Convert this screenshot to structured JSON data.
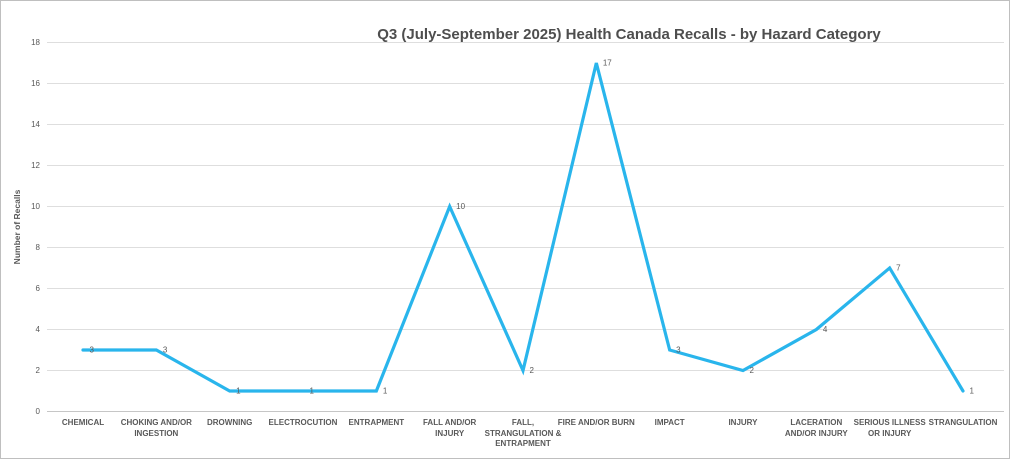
{
  "chart_data": {
    "type": "line",
    "title": "Q3 (July-September 2025) Health Canada Recalls - by Hazard Category",
    "xlabel": "",
    "ylabel": "Number of Recalls",
    "categories": [
      "CHEMICAL",
      "CHOKING AND/OR INGESTION",
      "DROWNING",
      "ELECTROCUTION",
      "ENTRAPMENT",
      "FALL AND/OR INJURY",
      "FALL, STRANGULATION & ENTRAPMENT",
      "FIRE AND/OR BURN",
      "IMPACT",
      "INJURY",
      "LACERATION AND/OR INJURY",
      "SERIOUS ILLNESS OR INJURY",
      "STRANGULATION"
    ],
    "x_tick_labels": [
      "CHEMICAL",
      "CHOKING AND/OR\nINGESTION",
      "DROWNING",
      "ELECTROCUTION",
      "ENTRAPMENT",
      "FALL AND/OR\nINJURY",
      "FALL,\nSTRANGULATION &\nENTRAPMENT",
      "FIRE AND/OR BURN",
      "IMPACT",
      "INJURY",
      "LACERATION\nAND/OR INJURY",
      "SERIOUS ILLNESS\nOR INJURY",
      "STRANGULATION"
    ],
    "values": [
      3,
      3,
      1,
      1,
      1,
      10,
      2,
      17,
      3,
      2,
      4,
      7,
      1
    ],
    "ylim": [
      0,
      18
    ],
    "ytick_step": 2,
    "yticks": [
      0,
      2,
      4,
      6,
      8,
      10,
      12,
      14,
      16,
      18
    ],
    "grid": true,
    "legend": "none",
    "data_labels": true
  },
  "colors": {
    "line": "#29B5EC",
    "gridline": "#DEDEDE",
    "axis_line": "#C6C6C6",
    "axis_text": "#595959",
    "data_label_text": "#595959",
    "title_text": "#4E4E4E",
    "border": "#BFBFBF",
    "background": "#FFFFFF"
  }
}
